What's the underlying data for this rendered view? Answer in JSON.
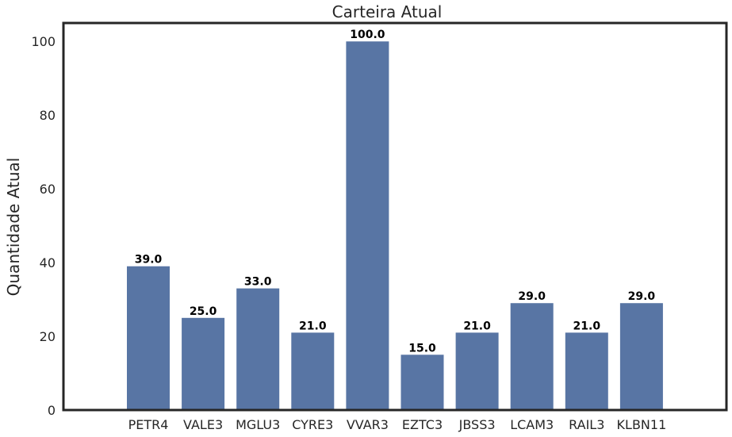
{
  "chart_data": {
    "type": "bar",
    "title": "Carteira Atual",
    "xlabel": "",
    "ylabel": "Quantidade Atual",
    "categories": [
      "PETR4",
      "VALE3",
      "MGLU3",
      "CYRE3",
      "VVAR3",
      "EZTC3",
      "JBSS3",
      "LCAM3",
      "RAIL3",
      "KLBN11"
    ],
    "values": [
      39,
      25,
      33,
      21,
      100,
      15,
      21,
      29,
      21,
      29
    ],
    "value_labels": [
      "39.0",
      "25.0",
      "33.0",
      "21.0",
      "100.0",
      "15.0",
      "21.0",
      "29.0",
      "21.0",
      "29.0"
    ],
    "ylim": [
      0,
      105
    ],
    "yticks": [
      0,
      20,
      40,
      60,
      80,
      100
    ],
    "grid": false,
    "bar_color": "#5875a4"
  }
}
